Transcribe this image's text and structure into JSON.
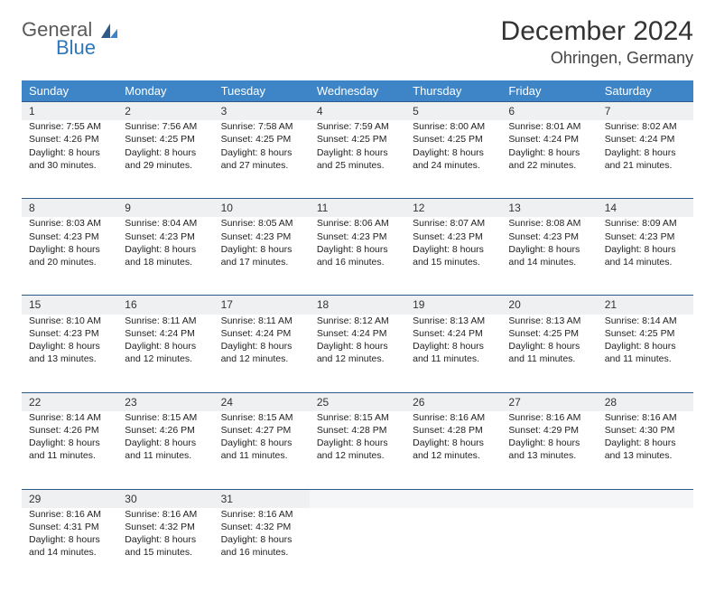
{
  "logo": {
    "general": "General",
    "blue": "Blue"
  },
  "title": "December 2024",
  "location": "Ohringen, Germany",
  "header_bg": "#3d85c6",
  "divider_color": "#2f5b8a",
  "daybar_bg": "#eef0f2",
  "weekdays": [
    "Sunday",
    "Monday",
    "Tuesday",
    "Wednesday",
    "Thursday",
    "Friday",
    "Saturday"
  ],
  "weeks": [
    [
      {
        "n": "1",
        "sr": "Sunrise: 7:55 AM",
        "ss": "Sunset: 4:26 PM",
        "d1": "Daylight: 8 hours",
        "d2": "and 30 minutes."
      },
      {
        "n": "2",
        "sr": "Sunrise: 7:56 AM",
        "ss": "Sunset: 4:25 PM",
        "d1": "Daylight: 8 hours",
        "d2": "and 29 minutes."
      },
      {
        "n": "3",
        "sr": "Sunrise: 7:58 AM",
        "ss": "Sunset: 4:25 PM",
        "d1": "Daylight: 8 hours",
        "d2": "and 27 minutes."
      },
      {
        "n": "4",
        "sr": "Sunrise: 7:59 AM",
        "ss": "Sunset: 4:25 PM",
        "d1": "Daylight: 8 hours",
        "d2": "and 25 minutes."
      },
      {
        "n": "5",
        "sr": "Sunrise: 8:00 AM",
        "ss": "Sunset: 4:25 PM",
        "d1": "Daylight: 8 hours",
        "d2": "and 24 minutes."
      },
      {
        "n": "6",
        "sr": "Sunrise: 8:01 AM",
        "ss": "Sunset: 4:24 PM",
        "d1": "Daylight: 8 hours",
        "d2": "and 22 minutes."
      },
      {
        "n": "7",
        "sr": "Sunrise: 8:02 AM",
        "ss": "Sunset: 4:24 PM",
        "d1": "Daylight: 8 hours",
        "d2": "and 21 minutes."
      }
    ],
    [
      {
        "n": "8",
        "sr": "Sunrise: 8:03 AM",
        "ss": "Sunset: 4:23 PM",
        "d1": "Daylight: 8 hours",
        "d2": "and 20 minutes."
      },
      {
        "n": "9",
        "sr": "Sunrise: 8:04 AM",
        "ss": "Sunset: 4:23 PM",
        "d1": "Daylight: 8 hours",
        "d2": "and 18 minutes."
      },
      {
        "n": "10",
        "sr": "Sunrise: 8:05 AM",
        "ss": "Sunset: 4:23 PM",
        "d1": "Daylight: 8 hours",
        "d2": "and 17 minutes."
      },
      {
        "n": "11",
        "sr": "Sunrise: 8:06 AM",
        "ss": "Sunset: 4:23 PM",
        "d1": "Daylight: 8 hours",
        "d2": "and 16 minutes."
      },
      {
        "n": "12",
        "sr": "Sunrise: 8:07 AM",
        "ss": "Sunset: 4:23 PM",
        "d1": "Daylight: 8 hours",
        "d2": "and 15 minutes."
      },
      {
        "n": "13",
        "sr": "Sunrise: 8:08 AM",
        "ss": "Sunset: 4:23 PM",
        "d1": "Daylight: 8 hours",
        "d2": "and 14 minutes."
      },
      {
        "n": "14",
        "sr": "Sunrise: 8:09 AM",
        "ss": "Sunset: 4:23 PM",
        "d1": "Daylight: 8 hours",
        "d2": "and 14 minutes."
      }
    ],
    [
      {
        "n": "15",
        "sr": "Sunrise: 8:10 AM",
        "ss": "Sunset: 4:23 PM",
        "d1": "Daylight: 8 hours",
        "d2": "and 13 minutes."
      },
      {
        "n": "16",
        "sr": "Sunrise: 8:11 AM",
        "ss": "Sunset: 4:24 PM",
        "d1": "Daylight: 8 hours",
        "d2": "and 12 minutes."
      },
      {
        "n": "17",
        "sr": "Sunrise: 8:11 AM",
        "ss": "Sunset: 4:24 PM",
        "d1": "Daylight: 8 hours",
        "d2": "and 12 minutes."
      },
      {
        "n": "18",
        "sr": "Sunrise: 8:12 AM",
        "ss": "Sunset: 4:24 PM",
        "d1": "Daylight: 8 hours",
        "d2": "and 12 minutes."
      },
      {
        "n": "19",
        "sr": "Sunrise: 8:13 AM",
        "ss": "Sunset: 4:24 PM",
        "d1": "Daylight: 8 hours",
        "d2": "and 11 minutes."
      },
      {
        "n": "20",
        "sr": "Sunrise: 8:13 AM",
        "ss": "Sunset: 4:25 PM",
        "d1": "Daylight: 8 hours",
        "d2": "and 11 minutes."
      },
      {
        "n": "21",
        "sr": "Sunrise: 8:14 AM",
        "ss": "Sunset: 4:25 PM",
        "d1": "Daylight: 8 hours",
        "d2": "and 11 minutes."
      }
    ],
    [
      {
        "n": "22",
        "sr": "Sunrise: 8:14 AM",
        "ss": "Sunset: 4:26 PM",
        "d1": "Daylight: 8 hours",
        "d2": "and 11 minutes."
      },
      {
        "n": "23",
        "sr": "Sunrise: 8:15 AM",
        "ss": "Sunset: 4:26 PM",
        "d1": "Daylight: 8 hours",
        "d2": "and 11 minutes."
      },
      {
        "n": "24",
        "sr": "Sunrise: 8:15 AM",
        "ss": "Sunset: 4:27 PM",
        "d1": "Daylight: 8 hours",
        "d2": "and 11 minutes."
      },
      {
        "n": "25",
        "sr": "Sunrise: 8:15 AM",
        "ss": "Sunset: 4:28 PM",
        "d1": "Daylight: 8 hours",
        "d2": "and 12 minutes."
      },
      {
        "n": "26",
        "sr": "Sunrise: 8:16 AM",
        "ss": "Sunset: 4:28 PM",
        "d1": "Daylight: 8 hours",
        "d2": "and 12 minutes."
      },
      {
        "n": "27",
        "sr": "Sunrise: 8:16 AM",
        "ss": "Sunset: 4:29 PM",
        "d1": "Daylight: 8 hours",
        "d2": "and 13 minutes."
      },
      {
        "n": "28",
        "sr": "Sunrise: 8:16 AM",
        "ss": "Sunset: 4:30 PM",
        "d1": "Daylight: 8 hours",
        "d2": "and 13 minutes."
      }
    ],
    [
      {
        "n": "29",
        "sr": "Sunrise: 8:16 AM",
        "ss": "Sunset: 4:31 PM",
        "d1": "Daylight: 8 hours",
        "d2": "and 14 minutes."
      },
      {
        "n": "30",
        "sr": "Sunrise: 8:16 AM",
        "ss": "Sunset: 4:32 PM",
        "d1": "Daylight: 8 hours",
        "d2": "and 15 minutes."
      },
      {
        "n": "31",
        "sr": "Sunrise: 8:16 AM",
        "ss": "Sunset: 4:32 PM",
        "d1": "Daylight: 8 hours",
        "d2": "and 16 minutes."
      },
      null,
      null,
      null,
      null
    ]
  ]
}
